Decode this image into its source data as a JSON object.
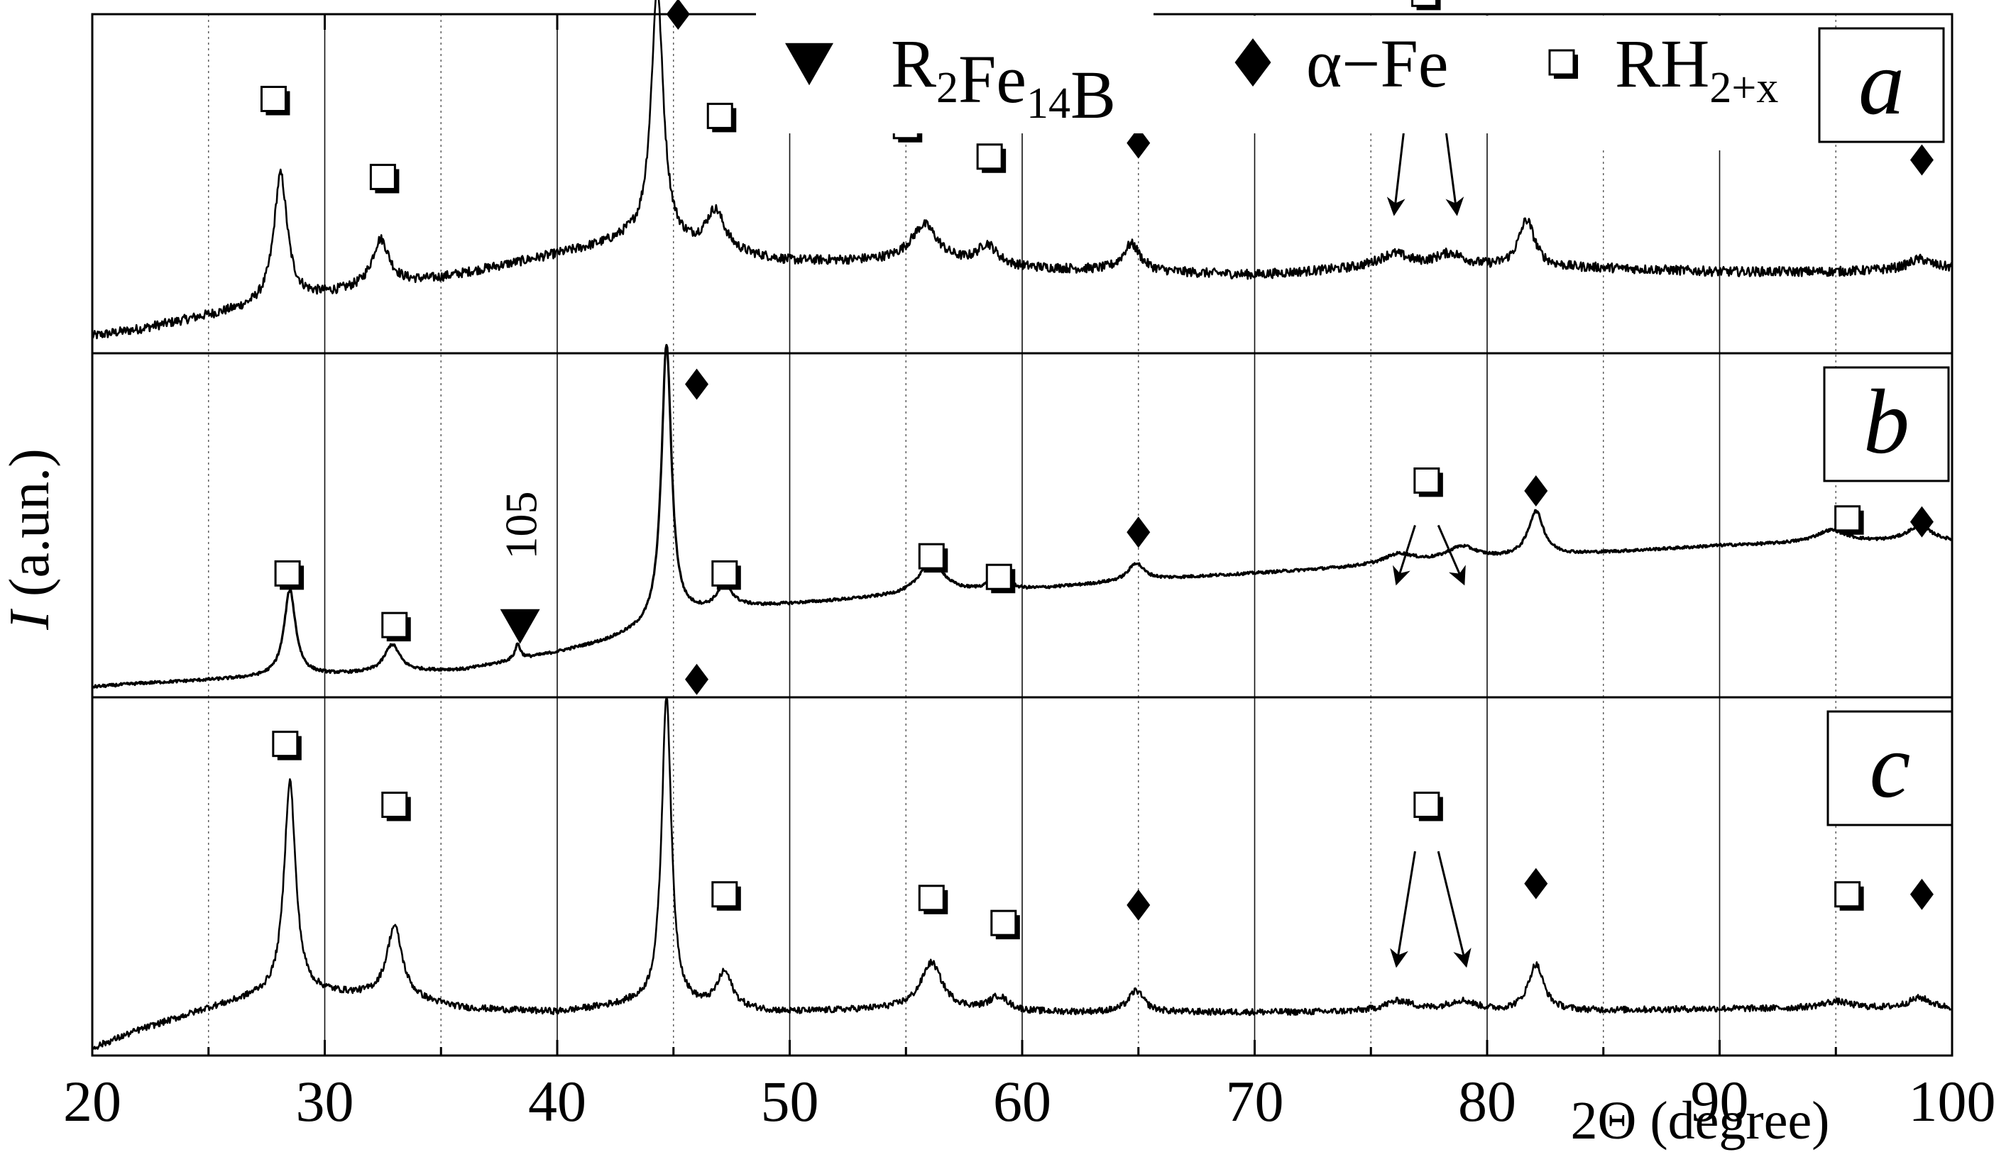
{
  "chart_data": {
    "type": "line",
    "x_range": [
      20,
      100
    ],
    "x_ticks": [
      20,
      30,
      40,
      50,
      60,
      70,
      80,
      90,
      100
    ],
    "x_minor_ticks": [
      25,
      35,
      45,
      55,
      65,
      75,
      85,
      95
    ],
    "xlabel": "2Θ (degree)",
    "ylabel_italic": "I",
    "ylabel_rest": " (a.un.)",
    "grid": true,
    "legend": [
      {
        "symbol": "triangle",
        "label_parts": [
          {
            "t": "R"
          },
          {
            "t": "2",
            "sub": true
          },
          {
            "t": "Fe"
          },
          {
            "t": "14",
            "sub": true
          },
          {
            "t": "B"
          }
        ]
      },
      {
        "symbol": "diamond",
        "label_parts": [
          {
            "t": "α−Fe"
          }
        ]
      },
      {
        "symbol": "square",
        "label_parts": [
          {
            "t": "RH"
          },
          {
            "t": "2+x",
            "sub": true
          }
        ]
      }
    ],
    "panels": [
      {
        "label": "a",
        "baseline": [
          [
            20,
            0.05
          ],
          [
            22,
            0.07
          ],
          [
            25,
            0.11
          ],
          [
            30,
            0.17
          ],
          [
            35,
            0.22
          ],
          [
            40,
            0.29
          ],
          [
            43,
            0.33
          ],
          [
            46,
            0.3
          ],
          [
            50,
            0.27
          ],
          [
            55,
            0.27
          ],
          [
            60,
            0.25
          ],
          [
            65,
            0.24
          ],
          [
            70,
            0.23
          ],
          [
            75,
            0.25
          ],
          [
            80,
            0.25
          ],
          [
            85,
            0.25
          ],
          [
            90,
            0.24
          ],
          [
            95,
            0.24
          ],
          [
            100,
            0.25
          ]
        ],
        "peaks": [
          [
            28.1,
            0.38,
            0.35
          ],
          [
            32.4,
            0.14,
            0.45
          ],
          [
            44.3,
            0.75,
            0.32
          ],
          [
            46.8,
            0.12,
            0.5
          ],
          [
            55.8,
            0.11,
            0.7
          ],
          [
            58.5,
            0.06,
            0.5
          ],
          [
            64.7,
            0.08,
            0.45
          ],
          [
            76.0,
            0.04,
            0.8
          ],
          [
            78.4,
            0.04,
            0.8
          ],
          [
            81.7,
            0.14,
            0.42
          ],
          [
            98.6,
            0.03,
            0.6
          ]
        ],
        "noise": 0.014,
        "markers": [
          {
            "symbol": "square",
            "x": 27.8,
            "y": 0.75
          },
          {
            "symbol": "square",
            "x": 32.5,
            "y": 0.52
          },
          {
            "symbol": "diamond",
            "x": 45.2,
            "y": 1.0
          },
          {
            "symbol": "square",
            "x": 47.0,
            "y": 0.7
          },
          {
            "symbol": "square",
            "x": 55.0,
            "y": 0.67
          },
          {
            "symbol": "square",
            "x": 58.6,
            "y": 0.58
          },
          {
            "symbol": "diamond",
            "x": 65.0,
            "y": 0.62
          },
          {
            "symbol": "square",
            "x": 77.3,
            "y": 1.06
          },
          {
            "symbol": "diamond",
            "x": 82.0,
            "y": 0.67
          },
          {
            "symbol": "diamond",
            "x": 98.7,
            "y": 0.57
          }
        ],
        "arrows": [
          {
            "from": [
              76.8,
              0.88
            ],
            "to": [
              76.0,
              0.41
            ]
          },
          {
            "from": [
              77.8,
              0.88
            ],
            "to": [
              78.7,
              0.41
            ]
          }
        ]
      },
      {
        "label": "b",
        "baseline": [
          [
            20,
            0.03
          ],
          [
            22,
            0.04
          ],
          [
            25,
            0.05
          ],
          [
            28,
            0.06
          ],
          [
            32,
            0.07
          ],
          [
            36,
            0.08
          ],
          [
            40,
            0.13
          ],
          [
            42,
            0.16
          ],
          [
            44,
            0.2
          ],
          [
            46,
            0.24
          ],
          [
            48,
            0.26
          ],
          [
            52,
            0.28
          ],
          [
            56,
            0.3
          ],
          [
            60,
            0.31
          ],
          [
            65,
            0.34
          ],
          [
            70,
            0.36
          ],
          [
            75,
            0.38
          ],
          [
            80,
            0.4
          ],
          [
            85,
            0.42
          ],
          [
            90,
            0.44
          ],
          [
            95,
            0.45
          ],
          [
            100,
            0.45
          ]
        ],
        "peaks": [
          [
            28.5,
            0.25,
            0.3
          ],
          [
            32.9,
            0.08,
            0.4
          ],
          [
            38.3,
            0.045,
            0.14
          ],
          [
            44.7,
            0.81,
            0.26
          ],
          [
            47.2,
            0.07,
            0.4
          ],
          [
            56.1,
            0.1,
            0.6
          ],
          [
            59.0,
            0.04,
            0.5
          ],
          [
            64.9,
            0.05,
            0.4
          ],
          [
            76.2,
            0.03,
            0.8
          ],
          [
            78.9,
            0.04,
            0.8
          ],
          [
            82.1,
            0.13,
            0.4
          ],
          [
            94.8,
            0.035,
            0.8
          ],
          [
            98.6,
            0.045,
            0.7
          ]
        ],
        "noise": 0.004,
        "markers": [
          {
            "symbol": "square",
            "x": 28.4,
            "y": 0.36
          },
          {
            "symbol": "square",
            "x": 33.0,
            "y": 0.21
          },
          {
            "symbol": "triangle",
            "x": 38.4,
            "y": 0.21
          },
          {
            "symbol": "diamond",
            "x": 46.0,
            "y": 0.91
          },
          {
            "symbol": "square",
            "x": 47.2,
            "y": 0.36
          },
          {
            "symbol": "square",
            "x": 56.1,
            "y": 0.41
          },
          {
            "symbol": "square",
            "x": 59.0,
            "y": 0.35
          },
          {
            "symbol": "diamond",
            "x": 65.0,
            "y": 0.48
          },
          {
            "symbol": "square",
            "x": 77.4,
            "y": 0.63
          },
          {
            "symbol": "diamond",
            "x": 82.1,
            "y": 0.6
          },
          {
            "symbol": "square",
            "x": 95.5,
            "y": 0.52
          },
          {
            "symbol": "diamond",
            "x": 98.7,
            "y": 0.51
          }
        ],
        "arrows": [
          {
            "from": [
              76.9,
              0.5
            ],
            "to": [
              76.1,
              0.33
            ]
          },
          {
            "from": [
              77.9,
              0.5
            ],
            "to": [
              79.0,
              0.33
            ]
          }
        ],
        "peak_label": {
          "text": "105",
          "x": 39.1,
          "y": 0.5
        }
      },
      {
        "label": "c",
        "baseline": [
          [
            20,
            0.02
          ],
          [
            22,
            0.07
          ],
          [
            25,
            0.13
          ],
          [
            27,
            0.16
          ],
          [
            30,
            0.17
          ],
          [
            33,
            0.16
          ],
          [
            36,
            0.13
          ],
          [
            40,
            0.12
          ],
          [
            43,
            0.14
          ],
          [
            46,
            0.13
          ],
          [
            50,
            0.12
          ],
          [
            55,
            0.13
          ],
          [
            60,
            0.12
          ],
          [
            65,
            0.12
          ],
          [
            70,
            0.12
          ],
          [
            80,
            0.12
          ],
          [
            90,
            0.13
          ],
          [
            100,
            0.13
          ]
        ],
        "peaks": [
          [
            28.5,
            0.6,
            0.3
          ],
          [
            33.0,
            0.2,
            0.4
          ],
          [
            44.7,
            0.87,
            0.25
          ],
          [
            47.2,
            0.1,
            0.4
          ],
          [
            56.1,
            0.13,
            0.55
          ],
          [
            59.0,
            0.04,
            0.5
          ],
          [
            64.9,
            0.06,
            0.4
          ],
          [
            76.2,
            0.03,
            0.8
          ],
          [
            78.9,
            0.03,
            0.8
          ],
          [
            82.1,
            0.13,
            0.4
          ],
          [
            95.0,
            0.02,
            0.8
          ],
          [
            98.6,
            0.03,
            0.6
          ]
        ],
        "noise": 0.009,
        "markers": [
          {
            "symbol": "square",
            "x": 28.3,
            "y": 0.87
          },
          {
            "symbol": "square",
            "x": 33.0,
            "y": 0.7
          },
          {
            "symbol": "diamond",
            "x": 46.0,
            "y": 1.05
          },
          {
            "symbol": "square",
            "x": 47.2,
            "y": 0.45
          },
          {
            "symbol": "square",
            "x": 56.1,
            "y": 0.44
          },
          {
            "symbol": "square",
            "x": 59.2,
            "y": 0.37
          },
          {
            "symbol": "diamond",
            "x": 65.0,
            "y": 0.42
          },
          {
            "symbol": "square",
            "x": 77.4,
            "y": 0.7
          },
          {
            "symbol": "diamond",
            "x": 82.1,
            "y": 0.48
          },
          {
            "symbol": "square",
            "x": 95.5,
            "y": 0.45
          },
          {
            "symbol": "diamond",
            "x": 98.7,
            "y": 0.45
          }
        ],
        "arrows": [
          {
            "from": [
              76.9,
              0.57
            ],
            "to": [
              76.1,
              0.25
            ]
          },
          {
            "from": [
              77.9,
              0.57
            ],
            "to": [
              79.1,
              0.25
            ]
          }
        ]
      }
    ]
  }
}
